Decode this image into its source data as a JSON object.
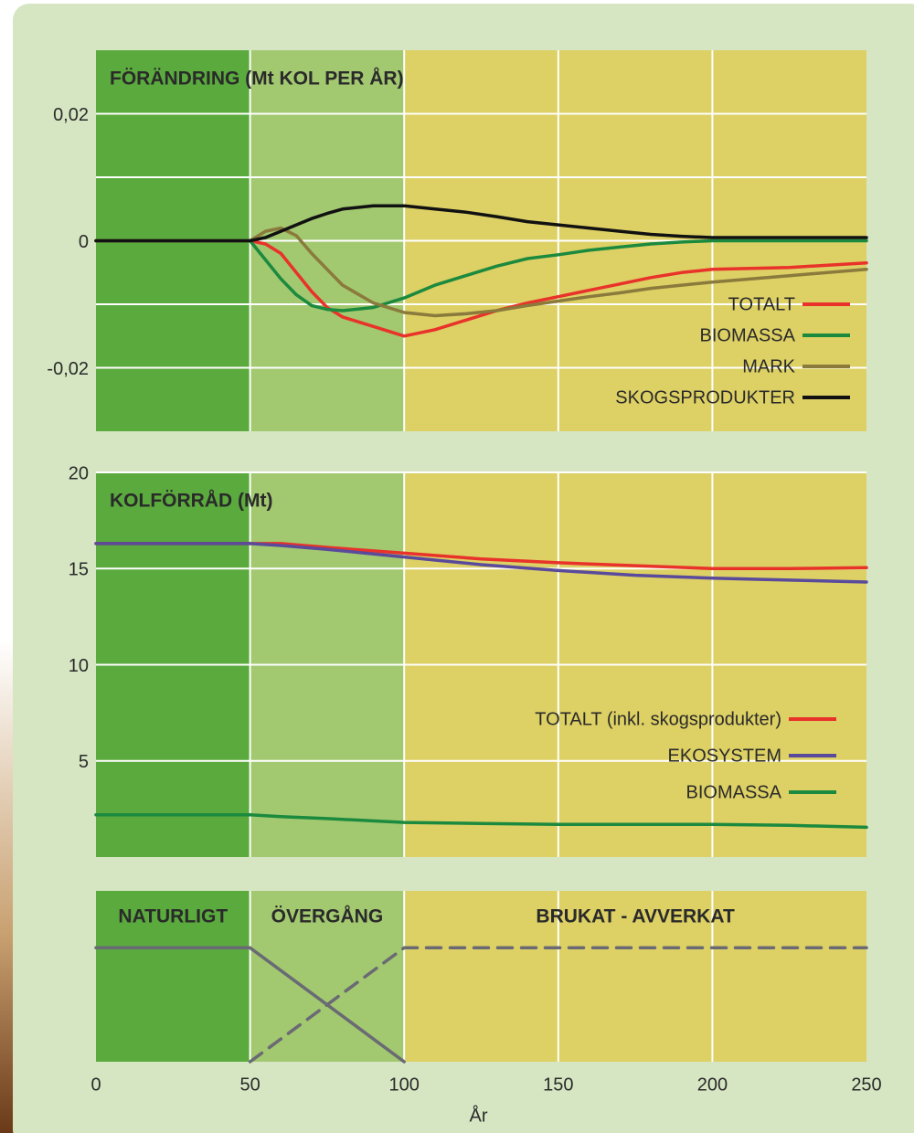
{
  "chart_data": [
    {
      "type": "line",
      "title": "FÖRÄNDRING (Mt KOL PER ÅR)",
      "x": [
        0,
        50,
        55,
        60,
        65,
        70,
        75,
        80,
        90,
        100,
        110,
        120,
        130,
        140,
        150,
        160,
        170,
        180,
        190,
        200,
        225,
        250
      ],
      "ylim": [
        -0.03,
        0.03
      ],
      "yticks": [
        {
          "value": 0.02,
          "label": "0,02"
        },
        0,
        {
          "value": -0.02,
          "label": "-0,02"
        }
      ],
      "yminorticks": [
        0.01,
        -0.01
      ],
      "legend": "lower right",
      "series": [
        {
          "name": "TOTALT",
          "color": "#e8322a",
          "values": [
            0,
            0,
            -0.0005,
            -0.002,
            -0.005,
            -0.008,
            -0.0105,
            -0.012,
            -0.0135,
            -0.015,
            -0.014,
            -0.0125,
            -0.011,
            -0.0098,
            -0.0088,
            -0.0078,
            -0.0068,
            -0.0058,
            -0.005,
            -0.0045,
            -0.0042,
            -0.0035
          ]
        },
        {
          "name": "BIOMASSA",
          "color": "#1b8a3e",
          "values": [
            0,
            0,
            -0.003,
            -0.006,
            -0.0085,
            -0.0102,
            -0.0108,
            -0.011,
            -0.0105,
            -0.009,
            -0.007,
            -0.0055,
            -0.004,
            -0.0028,
            -0.0022,
            -0.0015,
            -0.001,
            -0.0005,
            -0.0002,
            0,
            0,
            0
          ]
        },
        {
          "name": "MARK",
          "color": "#8a7a3c",
          "values": [
            0,
            0,
            0.0015,
            0.002,
            0.0008,
            -0.002,
            -0.0045,
            -0.007,
            -0.0098,
            -0.0113,
            -0.0118,
            -0.0115,
            -0.011,
            -0.0102,
            -0.0095,
            -0.0088,
            -0.0082,
            -0.0075,
            -0.007,
            -0.0065,
            -0.0055,
            -0.0045
          ]
        },
        {
          "name": "SKOGSPRODUKTER",
          "color": "#111111",
          "values": [
            0,
            0,
            0.0005,
            0.0015,
            0.0025,
            0.0035,
            0.0043,
            0.005,
            0.0055,
            0.0055,
            0.005,
            0.0045,
            0.0038,
            0.003,
            0.0025,
            0.002,
            0.0015,
            0.001,
            0.0007,
            0.0005,
            0.0005,
            0.0005
          ]
        }
      ]
    },
    {
      "type": "line",
      "title": "KOLFÖRRÅD (Mt)",
      "x": [
        0,
        50,
        60,
        75,
        100,
        125,
        150,
        175,
        200,
        225,
        250
      ],
      "ylim": [
        0,
        20
      ],
      "yticks": [
        20,
        15,
        10,
        5
      ],
      "legend": "lower right",
      "series": [
        {
          "name": "TOTALT (inkl. skogsprodukter)",
          "color": "#e8322a",
          "values": [
            16.3,
            16.3,
            16.3,
            16.1,
            15.8,
            15.5,
            15.3,
            15.15,
            15.0,
            15.0,
            15.05
          ]
        },
        {
          "name": "EKOSYSTEM",
          "color": "#5a4a9c",
          "values": [
            16.3,
            16.3,
            16.2,
            16.0,
            15.6,
            15.2,
            14.9,
            14.65,
            14.5,
            14.4,
            14.3
          ]
        },
        {
          "name": "BIOMASSA",
          "color": "#1b8a3e",
          "values": [
            2.2,
            2.2,
            2.1,
            2.0,
            1.8,
            1.75,
            1.7,
            1.7,
            1.7,
            1.65,
            1.55
          ]
        }
      ]
    },
    {
      "type": "line",
      "xlim": [
        0,
        250
      ],
      "xticks": [
        0,
        50,
        100,
        150,
        200,
        250
      ],
      "xlabel": "År",
      "ylim": [
        0,
        1.5
      ],
      "regions": [
        {
          "label": "NATURLIGT",
          "start": 0,
          "end": 50,
          "color": "#5aaa3e"
        },
        {
          "label": "ÖVERGÅNG",
          "start": 50,
          "end": 100,
          "color": "#a2c870"
        },
        {
          "label": "BRUKAT - AVVERKAT",
          "start": 100,
          "end": 250,
          "color": "#ddd064"
        }
      ],
      "series": [
        {
          "color": "#6a6a74",
          "dash": false,
          "x": [
            0,
            50,
            100
          ],
          "values": [
            1,
            1,
            0
          ]
        },
        {
          "color": "#6a6a74",
          "dash": true,
          "x": [
            50,
            100,
            250
          ],
          "values": [
            0,
            1,
            1
          ]
        }
      ]
    }
  ]
}
